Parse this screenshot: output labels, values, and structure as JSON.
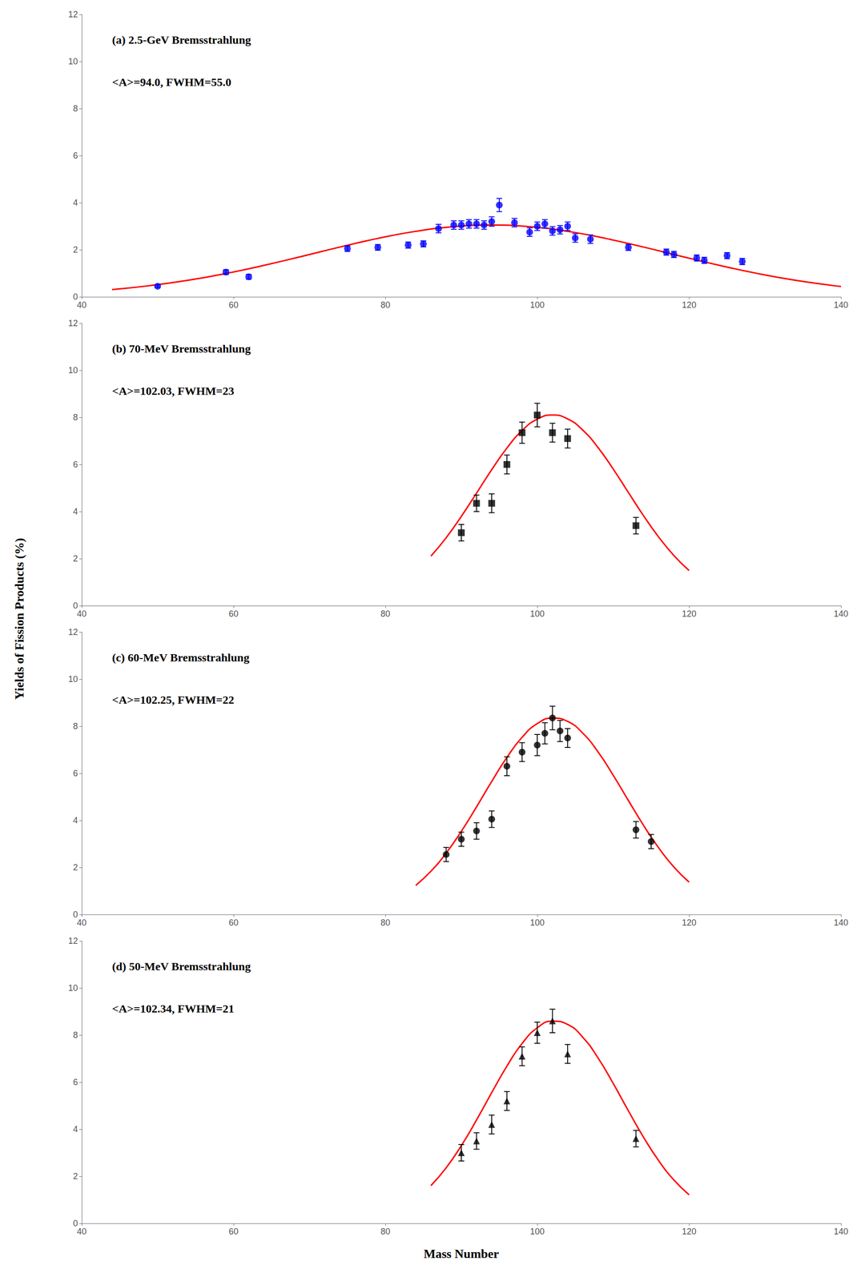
{
  "chart_data": [
    {
      "type": "scatter",
      "annotations": [
        "(a) 2.5-GeV Bremsstrahlung",
        "<A>=94.0, FWHM=55.0"
      ],
      "ylabel": "Yields of Fission Products (%)",
      "xlim": [
        40,
        140
      ],
      "ylim": [
        0,
        12
      ],
      "xticks": [
        40,
        60,
        80,
        100,
        120,
        140
      ],
      "yticks": [
        0,
        2,
        4,
        6,
        8,
        10,
        12
      ],
      "grid": false,
      "series": [
        {
          "type": "scatter",
          "color": "#0000FF",
          "marker": "circle",
          "x": [
            50,
            59,
            62,
            75,
            79,
            83,
            85,
            87,
            89,
            90,
            91,
            92,
            93,
            94,
            95,
            97,
            99,
            100,
            101,
            102,
            103,
            104,
            105,
            107,
            112,
            117,
            118,
            121,
            122,
            125,
            127
          ],
          "values": [
            0.45,
            1.05,
            0.85,
            2.05,
            2.1,
            2.2,
            2.25,
            2.9,
            3.05,
            3.05,
            3.1,
            3.1,
            3.05,
            3.2,
            3.9,
            3.15,
            2.75,
            3.0,
            3.1,
            2.8,
            2.85,
            3.0,
            2.5,
            2.45,
            2.1,
            1.9,
            1.8,
            1.65,
            1.55,
            1.75,
            1.5
          ],
          "yerr": [
            0.05,
            0.1,
            0.1,
            0.12,
            0.12,
            0.13,
            0.13,
            0.18,
            0.18,
            0.18,
            0.18,
            0.18,
            0.18,
            0.2,
            0.28,
            0.18,
            0.18,
            0.18,
            0.18,
            0.18,
            0.18,
            0.18,
            0.18,
            0.18,
            0.13,
            0.13,
            0.13,
            0.13,
            0.13,
            0.13,
            0.13
          ]
        },
        {
          "type": "line",
          "color": "red",
          "line_style": "solid",
          "x": [
            44,
            49,
            54,
            59,
            64,
            69,
            74,
            79,
            84,
            89,
            94,
            99,
            104,
            109,
            114,
            119,
            124,
            129,
            134,
            139,
            140
          ],
          "values": [
            0.308,
            0.477,
            0.704,
            0.992,
            1.337,
            1.72,
            2.114,
            2.482,
            2.783,
            2.981,
            3.05,
            2.981,
            2.783,
            2.482,
            2.114,
            1.72,
            1.337,
            0.992,
            0.704,
            0.477,
            0.439
          ]
        }
      ]
    },
    {
      "type": "scatter",
      "annotations": [
        "(b) 70-MeV Bremsstrahlung",
        "<A>=102.03, FWHM=23"
      ],
      "xlim": [
        40,
        140
      ],
      "ylim": [
        0,
        12
      ],
      "xticks": [
        40,
        60,
        80,
        100,
        120,
        140
      ],
      "yticks": [
        0,
        2,
        4,
        6,
        8,
        10,
        12
      ],
      "grid": false,
      "series": [
        {
          "type": "scatter",
          "color": "#000000",
          "marker": "square",
          "x": [
            90,
            92,
            94,
            96,
            98,
            100,
            102,
            104,
            113
          ],
          "values": [
            3.1,
            4.35,
            4.35,
            6.0,
            7.35,
            8.1,
            7.35,
            7.1,
            3.4
          ],
          "yerr": [
            0.35,
            0.35,
            0.4,
            0.4,
            0.45,
            0.5,
            0.4,
            0.4,
            0.35
          ]
        },
        {
          "type": "line",
          "color": "red",
          "line_style": "solid",
          "x": [
            86,
            88,
            90,
            92,
            94,
            96,
            98,
            100,
            102,
            104,
            106,
            108,
            110,
            112,
            114,
            116,
            118,
            120
          ],
          "values": [
            2.107,
            2.887,
            3.794,
            4.781,
            5.777,
            6.695,
            7.439,
            7.927,
            8.1,
            7.937,
            7.458,
            6.72,
            5.806,
            4.811,
            3.822,
            2.912,
            2.128,
            1.491
          ]
        }
      ]
    },
    {
      "type": "scatter",
      "annotations": [
        "(c) 60-MeV Bremsstrahlung",
        "<A>=102.25, FWHM=22"
      ],
      "xlim": [
        40,
        140
      ],
      "ylim": [
        0,
        12
      ],
      "xticks": [
        40,
        60,
        80,
        100,
        120,
        140
      ],
      "yticks": [
        0,
        2,
        4,
        6,
        8,
        10,
        12
      ],
      "grid": false,
      "series": [
        {
          "type": "scatter",
          "color": "#000000",
          "marker": "circle",
          "x": [
            88,
            90,
            92,
            94,
            96,
            98,
            100,
            101,
            102,
            103,
            104,
            113,
            115
          ],
          "values": [
            2.55,
            3.2,
            3.55,
            4.05,
            6.3,
            6.9,
            7.2,
            7.7,
            8.35,
            7.8,
            7.5,
            3.6,
            3.1
          ],
          "yerr": [
            0.3,
            0.3,
            0.35,
            0.35,
            0.4,
            0.4,
            0.45,
            0.45,
            0.5,
            0.45,
            0.4,
            0.35,
            0.3
          ]
        },
        {
          "type": "line",
          "color": "red",
          "line_style": "solid",
          "x": [
            84,
            86,
            88,
            90,
            92,
            94,
            96,
            98,
            100,
            102,
            104,
            106,
            108,
            110,
            112,
            114,
            116,
            118,
            120
          ],
          "values": [
            1.239,
            1.84,
            2.609,
            3.535,
            4.574,
            5.654,
            6.676,
            7.529,
            8.111,
            8.347,
            8.205,
            7.704,
            6.909,
            5.919,
            4.844,
            3.786,
            2.827,
            2.016,
            1.374
          ]
        }
      ]
    },
    {
      "type": "scatter",
      "annotations": [
        "(d) 50-MeV Bremsstrahlung",
        "<A>=102.34, FWHM=21"
      ],
      "xlabel": "Mass Number",
      "xlim": [
        40,
        140
      ],
      "ylim": [
        0,
        12
      ],
      "xticks": [
        40,
        60,
        80,
        100,
        120,
        140
      ],
      "yticks": [
        0,
        2,
        4,
        6,
        8,
        10,
        12
      ],
      "grid": false,
      "series": [
        {
          "type": "scatter",
          "color": "#000000",
          "marker": "triangle",
          "x": [
            90,
            92,
            94,
            96,
            98,
            100,
            102,
            104,
            113
          ],
          "values": [
            3.0,
            3.5,
            4.2,
            5.2,
            7.1,
            8.1,
            8.6,
            7.2,
            3.6
          ],
          "yerr": [
            0.35,
            0.35,
            0.4,
            0.4,
            0.4,
            0.45,
            0.5,
            0.4,
            0.35
          ]
        },
        {
          "type": "line",
          "color": "red",
          "line_style": "solid",
          "x": [
            86,
            88,
            90,
            92,
            94,
            96,
            98,
            100,
            102,
            104,
            106,
            108,
            110,
            112,
            114,
            116,
            118,
            120
          ],
          "values": [
            1.605,
            2.361,
            3.302,
            4.391,
            5.554,
            6.68,
            7.64,
            8.309,
            8.594,
            8.452,
            7.905,
            7.031,
            5.947,
            4.783,
            3.658,
            2.661,
            1.84,
            1.21
          ]
        }
      ]
    }
  ]
}
